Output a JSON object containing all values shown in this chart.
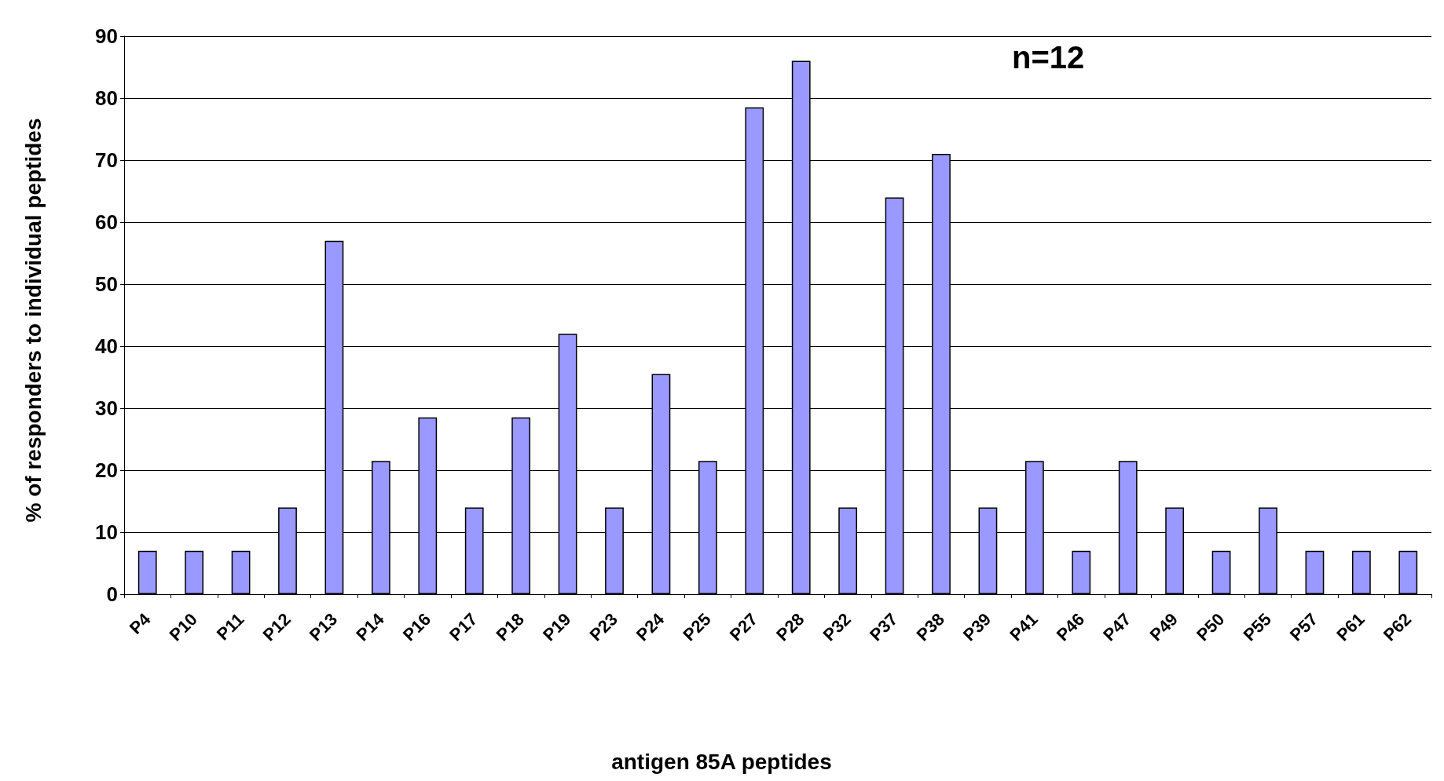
{
  "chart_data": {
    "type": "bar",
    "xlabel": "antigen 85A peptides",
    "ylabel": "% of responders to individual peptides",
    "annotations": [
      "n=12"
    ],
    "categories": [
      "P4",
      "P10",
      "P11",
      "P12",
      "P13",
      "P14",
      "P16",
      "P17",
      "P18",
      "P19",
      "P23",
      "P24",
      "P25",
      "P27",
      "P28",
      "P32",
      "P37",
      "P38",
      "P39",
      "P41",
      "P46",
      "P47",
      "P49",
      "P50",
      "P55",
      "P57",
      "P61",
      "P62"
    ],
    "values": [
      7,
      7,
      7,
      14,
      57,
      21.5,
      28.5,
      14,
      28.5,
      42,
      14,
      35.5,
      21.5,
      78.5,
      86,
      14,
      64,
      71,
      14,
      21.5,
      7,
      21.5,
      14,
      7,
      14,
      7,
      7,
      7
    ],
    "color": "#9999ff",
    "ylim": [
      0,
      90
    ],
    "yticks": [
      0,
      10,
      20,
      30,
      40,
      50,
      60,
      70,
      80,
      90
    ],
    "grid": "y"
  }
}
